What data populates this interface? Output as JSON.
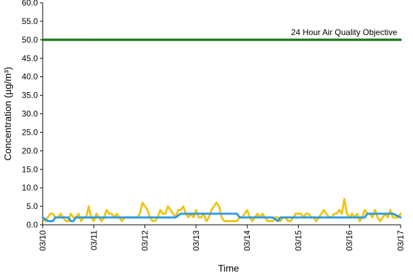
{
  "chart_data": {
    "type": "line",
    "title": "",
    "xlabel": "Time",
    "ylabel": "Concentration (µg/m³)",
    "ylim": [
      0,
      60
    ],
    "yticks": [
      "0.0",
      "5.0",
      "10.0",
      "15.0",
      "20.0",
      "25.0",
      "30.0",
      "35.0",
      "40.0",
      "45.0",
      "50.0",
      "55.0",
      "60.0"
    ],
    "xticks": [
      "03/10",
      "03/11",
      "03/12",
      "03/13",
      "03/14",
      "03/15",
      "03/16",
      "03/17"
    ],
    "grid": false,
    "legend": "none",
    "colors": {
      "objective": "#1f7a1f",
      "series_yellow": "#f0c419",
      "series_blue": "#2e9be0"
    },
    "annotations": [
      {
        "text": "24 Hour Air Quality Objective",
        "y": 50
      }
    ],
    "series": [
      {
        "color": "#1f7a1f",
        "x": [
          0,
          7
        ],
        "values": [
          50,
          50
        ]
      },
      {
        "color": "#f0c419",
        "x": [
          0,
          0.05,
          0.1,
          0.15,
          0.2,
          0.25,
          0.3,
          0.35,
          0.4,
          0.45,
          0.5,
          0.55,
          0.6,
          0.65,
          0.7,
          0.75,
          0.8,
          0.85,
          0.9,
          0.95,
          1.0,
          1.05,
          1.1,
          1.15,
          1.2,
          1.25,
          1.3,
          1.35,
          1.4,
          1.45,
          1.5,
          1.55,
          1.6,
          1.65,
          1.7,
          1.75,
          1.8,
          1.85,
          1.9,
          1.95,
          2.0,
          2.05,
          2.1,
          2.15,
          2.2,
          2.25,
          2.3,
          2.35,
          2.4,
          2.45,
          2.5,
          2.55,
          2.6,
          2.65,
          2.7,
          2.75,
          2.8,
          2.85,
          2.9,
          2.95,
          3.0,
          3.05,
          3.1,
          3.15,
          3.2,
          3.25,
          3.3,
          3.35,
          3.4,
          3.45,
          3.5,
          3.55,
          3.6,
          3.65,
          3.7,
          3.75,
          3.8,
          3.85,
          3.9,
          3.95,
          4.0,
          4.05,
          4.1,
          4.15,
          4.2,
          4.25,
          4.3,
          4.35,
          4.4,
          4.45,
          4.5,
          4.55,
          4.6,
          4.65,
          4.7,
          4.75,
          4.8,
          4.85,
          4.9,
          4.95,
          5.0,
          5.05,
          5.1,
          5.15,
          5.2,
          5.25,
          5.3,
          5.35,
          5.4,
          5.45,
          5.5,
          5.55,
          5.6,
          5.65,
          5.7,
          5.75,
          5.8,
          5.85,
          5.9,
          5.95,
          6.0,
          6.05,
          6.1,
          6.15,
          6.2,
          6.25,
          6.3,
          6.35,
          6.4,
          6.45,
          6.5,
          6.55,
          6.6,
          6.65,
          6.7,
          6.75,
          6.8,
          6.85,
          6.9,
          6.95,
          7.0
        ],
        "values": [
          2,
          1,
          2,
          3,
          3,
          2,
          2,
          3,
          2,
          1,
          1,
          3,
          2,
          2,
          3,
          1,
          2,
          2,
          5,
          2,
          1,
          3,
          2,
          1,
          2,
          4,
          3,
          3,
          2,
          3,
          2,
          1,
          2,
          2,
          2,
          2,
          2,
          2,
          3,
          6,
          5,
          4,
          2,
          1,
          1,
          2,
          4,
          3,
          3,
          5,
          4,
          3,
          2,
          4,
          4,
          5,
          3,
          2,
          3,
          2,
          4,
          2,
          2,
          3,
          1,
          2,
          4,
          5,
          6,
          5,
          2,
          1,
          1,
          1,
          1,
          1,
          1,
          2,
          2,
          3,
          4,
          2,
          1,
          2,
          3,
          2,
          3,
          2,
          1,
          1,
          1,
          2,
          2,
          1,
          2,
          2,
          1,
          1,
          2,
          3,
          3,
          3,
          2,
          3,
          3,
          2,
          2,
          1,
          2,
          3,
          4,
          3,
          2,
          2,
          3,
          3,
          4,
          3,
          7,
          3,
          2,
          3,
          2,
          3,
          1,
          2,
          4,
          3,
          3,
          2,
          4,
          2,
          1,
          2,
          3,
          2,
          4,
          2,
          2,
          2,
          3
        ],
        "note": ""
      },
      {
        "color": "#2e9be0",
        "x": [
          0,
          0.1,
          0.15,
          0.2,
          0.25,
          0.5,
          0.55,
          0.6,
          0.65,
          1.0,
          1.5,
          2.0,
          2.5,
          2.6,
          2.7,
          3.0,
          3.5,
          3.8,
          3.85,
          4.0,
          4.5,
          4.6,
          4.65,
          5.0,
          5.5,
          5.6,
          5.7,
          6.0,
          6.3,
          6.35,
          6.5,
          6.8,
          6.85,
          7.0
        ],
        "values": [
          2,
          1,
          1,
          1,
          2,
          2,
          1,
          1,
          2,
          2,
          2,
          2,
          2,
          2,
          3,
          3,
          3,
          3,
          2,
          2,
          2,
          1,
          2,
          2,
          2,
          2,
          2,
          2,
          2,
          3,
          3,
          3,
          3,
          2
        ],
        "note": ""
      }
    ]
  }
}
